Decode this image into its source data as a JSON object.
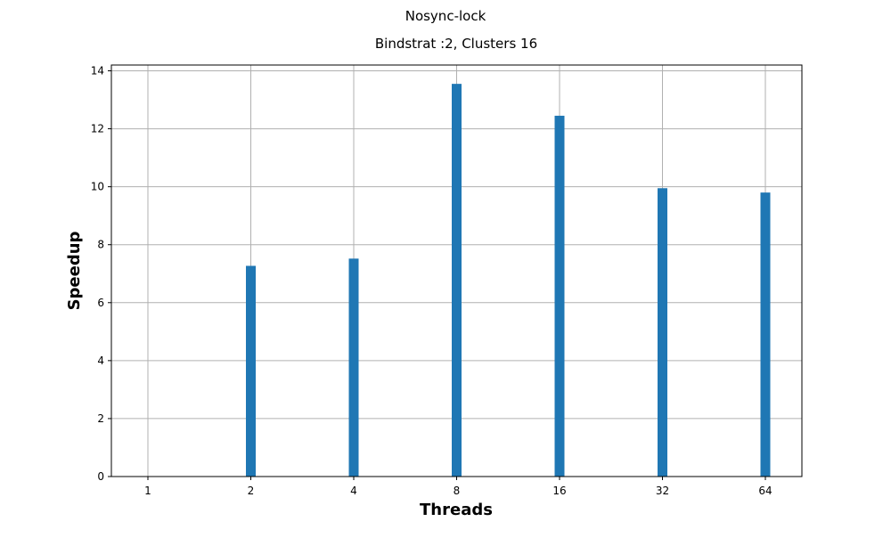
{
  "figure": {
    "suptitle": "Nosync-lock"
  },
  "chart_data": {
    "type": "bar",
    "title": "Bindstrat :2, Clusters 16",
    "xlabel": "Threads",
    "ylabel": "Speedup",
    "categories": [
      "1",
      "2",
      "4",
      "8",
      "16",
      "32",
      "64"
    ],
    "values": [
      0,
      7.27,
      7.52,
      13.55,
      12.45,
      9.95,
      9.8
    ],
    "ylim": [
      0,
      14.2
    ],
    "yticks": [
      0,
      2,
      4,
      6,
      8,
      10,
      12,
      14
    ],
    "grid": true,
    "bar_color": "#1f77b4",
    "grid_color": "#b0b0b0"
  }
}
